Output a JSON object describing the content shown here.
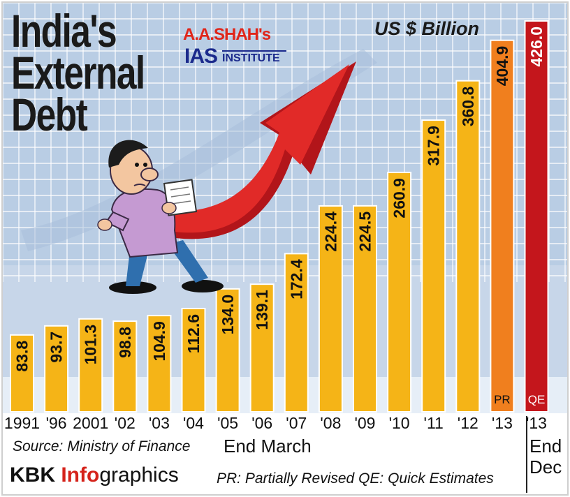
{
  "header": {
    "title_lines": [
      "India's",
      "External",
      "Debt"
    ],
    "units": "US $ Billion",
    "logo_top": "A.A.SHAH's",
    "logo_ias": "IAS",
    "logo_institute": "INSTITUTE"
  },
  "footer": {
    "source": "Source: Ministry of Finance",
    "end_march": "End March",
    "end_dec_1": "End",
    "end_dec_2": "Dec",
    "credit_kbk": "KBK ",
    "credit_info": "Info",
    "credit_graphics": "graphics",
    "legend": "PR: Partially Revised   QE: Quick Estimates"
  },
  "colors": {
    "sky": "#b9cde4",
    "grid": "#ffffff",
    "bar_default": "#f5b417",
    "bar_pr": "#f07f1e",
    "bar_qe": "#c4161c",
    "arrow": "#d01c1f",
    "axis_band": "#c7d6e9"
  },
  "chart_data": {
    "type": "bar",
    "title": "India's External Debt",
    "ylabel": "US $ Billion",
    "categories": [
      "1991",
      "'96",
      "2001",
      "'02",
      "'03",
      "'04",
      "'05",
      "'06",
      "'07",
      "'08",
      "'09",
      "'10",
      "'11",
      "'12",
      "'13",
      "'13"
    ],
    "values": [
      83.8,
      93.7,
      101.3,
      98.8,
      104.9,
      112.6,
      134.0,
      139.1,
      172.4,
      224.4,
      224.5,
      260.9,
      317.9,
      360.8,
      404.9,
      426.0
    ],
    "value_labels": [
      "83.8",
      "93.7",
      "101.3",
      "98.8",
      "104.9",
      "112.6",
      "134.0",
      "139.1",
      "172.4",
      "224.4",
      "224.5",
      "260.9",
      "317.9",
      "360.8",
      "404.9",
      "426.0"
    ],
    "bar_tags": [
      "",
      "",
      "",
      "",
      "",
      "",
      "",
      "",
      "",
      "",
      "",
      "",
      "",
      "",
      "PR",
      "QE"
    ],
    "bar_kind": [
      "default",
      "default",
      "default",
      "default",
      "default",
      "default",
      "default",
      "default",
      "default",
      "default",
      "default",
      "default",
      "default",
      "default",
      "pr",
      "qe"
    ],
    "ylim": [
      0,
      426.0
    ],
    "grid": true
  }
}
